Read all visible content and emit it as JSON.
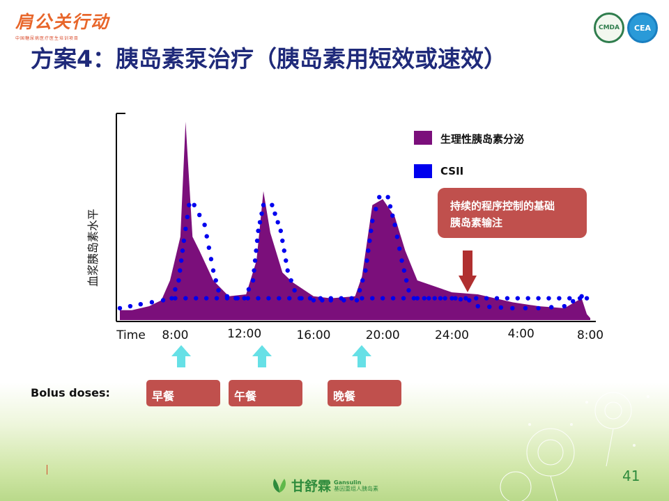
{
  "logo": {
    "main": "肩公关行动",
    "sub": "中国糖尿病医疗医生培训项目"
  },
  "badges": {
    "left": "CMDA",
    "right": "CEA"
  },
  "title": "方案4：胰岛素泵治疗（胰岛素用短效或速效）",
  "chart_data": {
    "type": "area",
    "ylabel": "血浆胰岛素水平",
    "xlabel": "Time",
    "x_ticks": [
      "8:00",
      "12:00",
      "16:00",
      "20:00",
      "24:00",
      "4:00",
      "8:00"
    ],
    "x_tick_hours": [
      8,
      12,
      16,
      20,
      24,
      28,
      32
    ],
    "xlim": [
      4.8,
      32.2
    ],
    "ylim": [
      0,
      100
    ],
    "grid": false,
    "legend_position": "top-right",
    "series": [
      {
        "name": "生理性胰岛素分泌",
        "color": "#7b0f7b",
        "style": "filled-area",
        "x": [
          4.8,
          5.5,
          6.5,
          7.2,
          7.7,
          8.3,
          8.6,
          9.0,
          9.4,
          10.2,
          11.1,
          12.1,
          12.7,
          13.1,
          13.5,
          14.2,
          14.8,
          16.0,
          17.0,
          18.4,
          18.8,
          19.4,
          20.0,
          20.7,
          21.3,
          22.0,
          24.0,
          25.5,
          27.5,
          29.0,
          30.5,
          31.5,
          31.8,
          32.0
        ],
        "y": [
          5,
          5,
          7,
          10,
          20,
          42,
          100,
          42,
          35,
          20,
          12,
          13,
          30,
          65,
          44,
          24,
          19,
          12,
          11,
          12,
          22,
          58,
          61,
          52,
          35,
          20,
          14,
          13,
          9,
          7,
          6,
          11,
          3,
          1
        ]
      },
      {
        "name": "CSII",
        "color": "#0000ee",
        "style": "dotted",
        "x": [
          4.8,
          6.0,
          7.3,
          7.8,
          8.2,
          8.5,
          8.8,
          9.1,
          9.7,
          10.2,
          10.5,
          11.0,
          11.5,
          12.0,
          12.5,
          12.8,
          13.1,
          13.6,
          14.1,
          14.5,
          14.9,
          15.3,
          16.0,
          17.0,
          18.5,
          19.0,
          19.4,
          19.8,
          20.3,
          20.7,
          21.1,
          21.5,
          22.0,
          24.0,
          25.0,
          25.5,
          27.5,
          29.0,
          30.5,
          31.5,
          31.8,
          32.0
        ],
        "y": [
          6,
          8,
          10,
          11,
          20,
          40,
          58,
          58,
          48,
          25,
          15,
          12,
          11,
          11,
          20,
          45,
          58,
          58,
          45,
          25,
          15,
          11,
          10,
          10,
          10,
          25,
          50,
          62,
          62,
          48,
          30,
          15,
          11,
          11,
          10,
          7,
          6,
          6,
          7,
          12,
          11,
          10
        ]
      },
      {
        "name": "基础",
        "color": "#0000ee",
        "style": "dotted",
        "x": [
          8,
          32
        ],
        "y": [
          11,
          11
        ]
      }
    ]
  },
  "callout": {
    "line1": "持续的程序控制的基础",
    "line2": "胰岛素输注"
  },
  "bolus": {
    "label": "Bolus doses:",
    "meals": [
      "早餐",
      "午餐",
      "晚餐"
    ]
  },
  "page_number": "41",
  "footer": {
    "main": "甘舒霖",
    "side_top": "Gansulin",
    "side_bottom": "基因重组人胰岛素"
  },
  "colors": {
    "title": "#1f2a7a",
    "purple": "#7b0f7b",
    "blue": "#0000ee",
    "callout": "#c0504d",
    "arrow": "#b03030",
    "cyan": "#66e0e6"
  }
}
